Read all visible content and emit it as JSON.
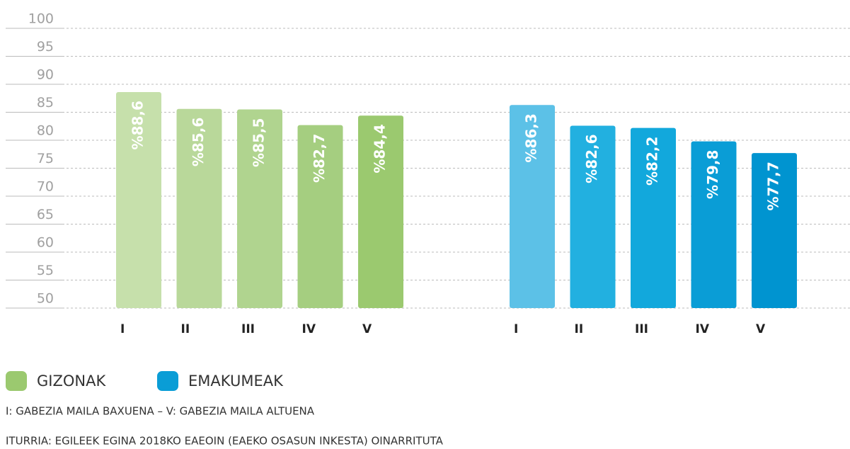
{
  "chart_data": {
    "type": "bar",
    "categories": [
      "I",
      "II",
      "III",
      "IV",
      "V"
    ],
    "series": [
      {
        "name": "GIZONAK",
        "color": "#9bc96f",
        "bar_colors": [
          "#c6e0ab",
          "#b9d89a",
          "#b0d48f",
          "#a5ce80",
          "#9bc96f"
        ],
        "values": [
          88.6,
          85.6,
          85.5,
          82.7,
          84.4
        ],
        "value_labels": [
          "%88,6",
          "%85,6",
          "%85,5",
          "%82,7",
          "%84,4"
        ]
      },
      {
        "name": "EMAKUMEAK",
        "color": "#0a9dd6",
        "bar_colors": [
          "#5cc1e7",
          "#22b0e0",
          "#12a8dc",
          "#0a9dd6",
          "#0094d0"
        ],
        "values": [
          86.3,
          82.6,
          82.2,
          79.8,
          77.7
        ],
        "value_labels": [
          "%86,3",
          "%82,6",
          "%82,2",
          "%79,8",
          "%77,7"
        ]
      }
    ],
    "ylim": [
      50,
      100
    ],
    "yticks": [
      50,
      55,
      60,
      65,
      70,
      75,
      80,
      85,
      90,
      95,
      100
    ],
    "grid": true,
    "annotations": [
      "I: GABEZIA MAILA BAXUENA – V: GABEZIA MAILA ALTUENA",
      "ITURRIA: EGILEEK EGINA 2018KO EAEOIN (EAEKO OSASUN INKESTA) OINARRITUTA"
    ]
  }
}
